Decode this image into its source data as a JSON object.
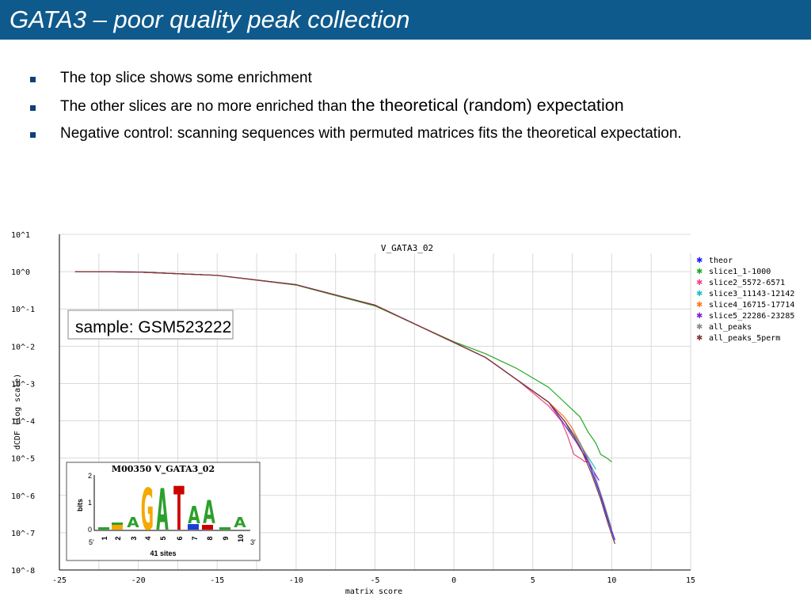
{
  "slide": {
    "title": "GATA3 – poor quality peak collection",
    "bullets": [
      {
        "text": "The top slice shows some enrichment"
      },
      {
        "text_small": "The other slices are no more enriched than ",
        "text_large": "the theoretical (random) expectation"
      },
      {
        "text": "Negative control: scanning sequences with permuted matrices fits the theoretical expectation."
      }
    ],
    "sample_label": "sample: GSM523222"
  },
  "chart_data": {
    "type": "line",
    "title": "V_GATA3_02",
    "xlabel": "matrix score",
    "ylabel": "dCDF (log scale)",
    "xlim": [
      -25,
      15
    ],
    "ylim_log10": [
      -8,
      1
    ],
    "log_y": true,
    "grid": true,
    "legend_position": "right",
    "x_ticks": [
      "-25",
      "-20",
      "-15",
      "-10",
      "-5",
      "0",
      "5",
      "10",
      "15"
    ],
    "y_ticks": [
      "10^1",
      "10^0",
      "10^-1",
      "10^-2",
      "10^-3",
      "10^-4",
      "10^-5",
      "10^-6",
      "10^-7",
      "10^-8"
    ],
    "series": [
      {
        "name": "theor",
        "color": "#1a1aff",
        "x": [
          -24,
          -20,
          -15,
          -10,
          -5,
          0,
          2,
          4,
          6,
          7,
          8,
          8.7,
          9.3,
          9.8,
          10.2
        ],
        "log10_y": [
          0,
          -0.01,
          -0.1,
          -0.35,
          -0.9,
          -1.9,
          -2.3,
          -2.9,
          -3.5,
          -4.0,
          -4.6,
          -5.3,
          -6.0,
          -6.7,
          -7.2
        ]
      },
      {
        "name": "slice1_1-1000",
        "color": "#22aa22",
        "x": [
          -24,
          -20,
          -15,
          -10,
          -5,
          0,
          2,
          4,
          6,
          7,
          8,
          8.5,
          9,
          9.3,
          9.7,
          10
        ],
        "log10_y": [
          0,
          -0.01,
          -0.1,
          -0.36,
          -0.92,
          -1.88,
          -2.2,
          -2.6,
          -3.1,
          -3.5,
          -3.9,
          -4.3,
          -4.6,
          -4.9,
          -5.0,
          -5.1
        ]
      },
      {
        "name": "slice2_5572-6571",
        "color": "#ee4488",
        "x": [
          -24,
          -20,
          -15,
          -10,
          -5,
          0,
          2,
          4,
          6,
          6.8,
          7.2,
          7.6,
          8,
          8.3,
          8.6
        ],
        "log10_y": [
          0,
          -0.01,
          -0.1,
          -0.35,
          -0.9,
          -1.9,
          -2.3,
          -2.9,
          -3.6,
          -4.0,
          -4.4,
          -4.9,
          -5.0,
          -5.1,
          -5.1
        ]
      },
      {
        "name": "slice3_11143-12142",
        "color": "#22bbcc",
        "x": [
          -24,
          -20,
          -15,
          -10,
          -5,
          0,
          2,
          4,
          6,
          7,
          7.8,
          8.4,
          9
        ],
        "log10_y": [
          0,
          -0.01,
          -0.1,
          -0.35,
          -0.9,
          -1.9,
          -2.3,
          -2.9,
          -3.5,
          -4.1,
          -4.5,
          -4.9,
          -5.3
        ]
      },
      {
        "name": "slice4_16715-17714",
        "color": "#ff7722",
        "x": [
          -24,
          -20,
          -15,
          -10,
          -5,
          0,
          2,
          4,
          6,
          7,
          7.5,
          8,
          8.5
        ],
        "log10_y": [
          0,
          -0.01,
          -0.1,
          -0.35,
          -0.9,
          -1.9,
          -2.3,
          -2.9,
          -3.5,
          -3.9,
          -4.2,
          -4.6,
          -5.0
        ]
      },
      {
        "name": "slice5_22286-23285",
        "color": "#7722cc",
        "x": [
          -24,
          -20,
          -15,
          -10,
          -5,
          0,
          2,
          4,
          6,
          7,
          7.8,
          8.5,
          9.2
        ],
        "log10_y": [
          0,
          -0.01,
          -0.1,
          -0.35,
          -0.9,
          -1.9,
          -2.3,
          -2.9,
          -3.5,
          -4.1,
          -4.6,
          -5.1,
          -5.6
        ]
      },
      {
        "name": "all_peaks",
        "color": "#888888",
        "x": [
          -24,
          -20,
          -15,
          -10,
          -5,
          0,
          2,
          4,
          6,
          7,
          8,
          8.8,
          9.5,
          10
        ],
        "log10_y": [
          0,
          -0.01,
          -0.1,
          -0.35,
          -0.9,
          -1.9,
          -2.3,
          -2.9,
          -3.5,
          -4.0,
          -4.6,
          -5.3,
          -6.2,
          -6.9
        ]
      },
      {
        "name": "all_peaks_5perm",
        "color": "#883333",
        "x": [
          -24,
          -20,
          -15,
          -10,
          -5,
          0,
          2,
          4,
          6,
          7,
          8,
          8.7,
          9.3,
          9.8,
          10.2
        ],
        "log10_y": [
          0,
          -0.01,
          -0.1,
          -0.35,
          -0.9,
          -1.9,
          -2.3,
          -2.9,
          -3.5,
          -4.0,
          -4.7,
          -5.4,
          -6.1,
          -6.8,
          -7.3
        ]
      }
    ]
  },
  "logo_inset": {
    "title": "M00350 V_GATA3_02",
    "ylabel": "bits",
    "yticks": [
      "2",
      "1",
      "0"
    ],
    "positions": [
      "1",
      "2",
      "3",
      "4",
      "5",
      "6",
      "7",
      "8",
      "9",
      "10"
    ],
    "end5": "5′",
    "end3": "3′",
    "sites": "41 sites",
    "letters": [
      {
        "letter": "G",
        "color": "#f5a800"
      },
      {
        "letter": "A",
        "color": "#2ca02c"
      },
      {
        "letter": "T",
        "color": "#cc0000"
      },
      {
        "letter": "A",
        "color": "#2ca02c"
      },
      {
        "letter": "A",
        "color": "#2ca02c"
      },
      {
        "letter": "A",
        "color": "#2ca02c"
      },
      {
        "letter": "A",
        "color": "#2ca02c"
      }
    ]
  }
}
